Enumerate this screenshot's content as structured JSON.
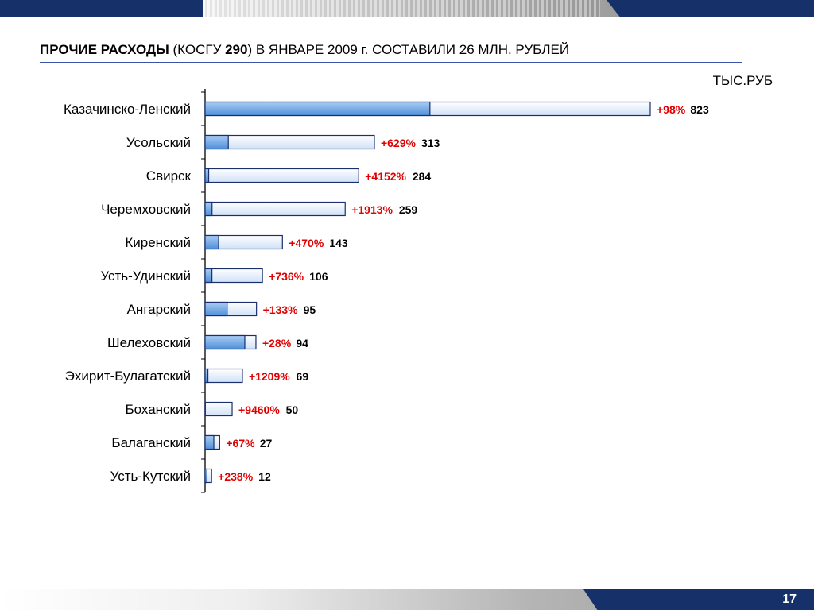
{
  "title": {
    "part1": "ПРОЧИЕ РАСХОДЫ",
    "part2": " (КОСГУ ",
    "part3": "290",
    "part4": ") В ЯНВАРЕ 2009 г. СОСТАВИЛИ 26 МЛН. РУБЛЕЙ"
  },
  "unit_label": "ТЫС.РУБ",
  "page_number": "17",
  "colors": {
    "bar_fill_dark": "#6fa8e6",
    "bar_fill_light": "#ffffff",
    "bar_border": "#1a2f6b",
    "growth_text": "#e00000",
    "value_text": "#000000",
    "brand_navy": "#16306a"
  },
  "chart_data": {
    "type": "bar",
    "orientation": "horizontal",
    "categories": [
      "Казачинско-Ленский",
      "Усольский",
      "Свирск",
      "Черемховский",
      "Киренский",
      "Усть-Удинский",
      "Ангарский",
      "Шелеховский",
      "Эхирит-Булагатский",
      "Боханский",
      "Балаганский",
      "Усть-Кутский"
    ],
    "values": [
      823,
      313,
      284,
      259,
      143,
      106,
      95,
      94,
      69,
      50,
      27,
      12
    ],
    "growth_labels": [
      "+98%",
      "+629%",
      "+4152%",
      "+1913%",
      "+470%",
      "+736%",
      "+133%",
      "+28%",
      "+1209%",
      "+9460%",
      "+67%",
      "+238%"
    ],
    "xlim": [
      0,
      823
    ],
    "grid": false,
    "legend": "none"
  }
}
